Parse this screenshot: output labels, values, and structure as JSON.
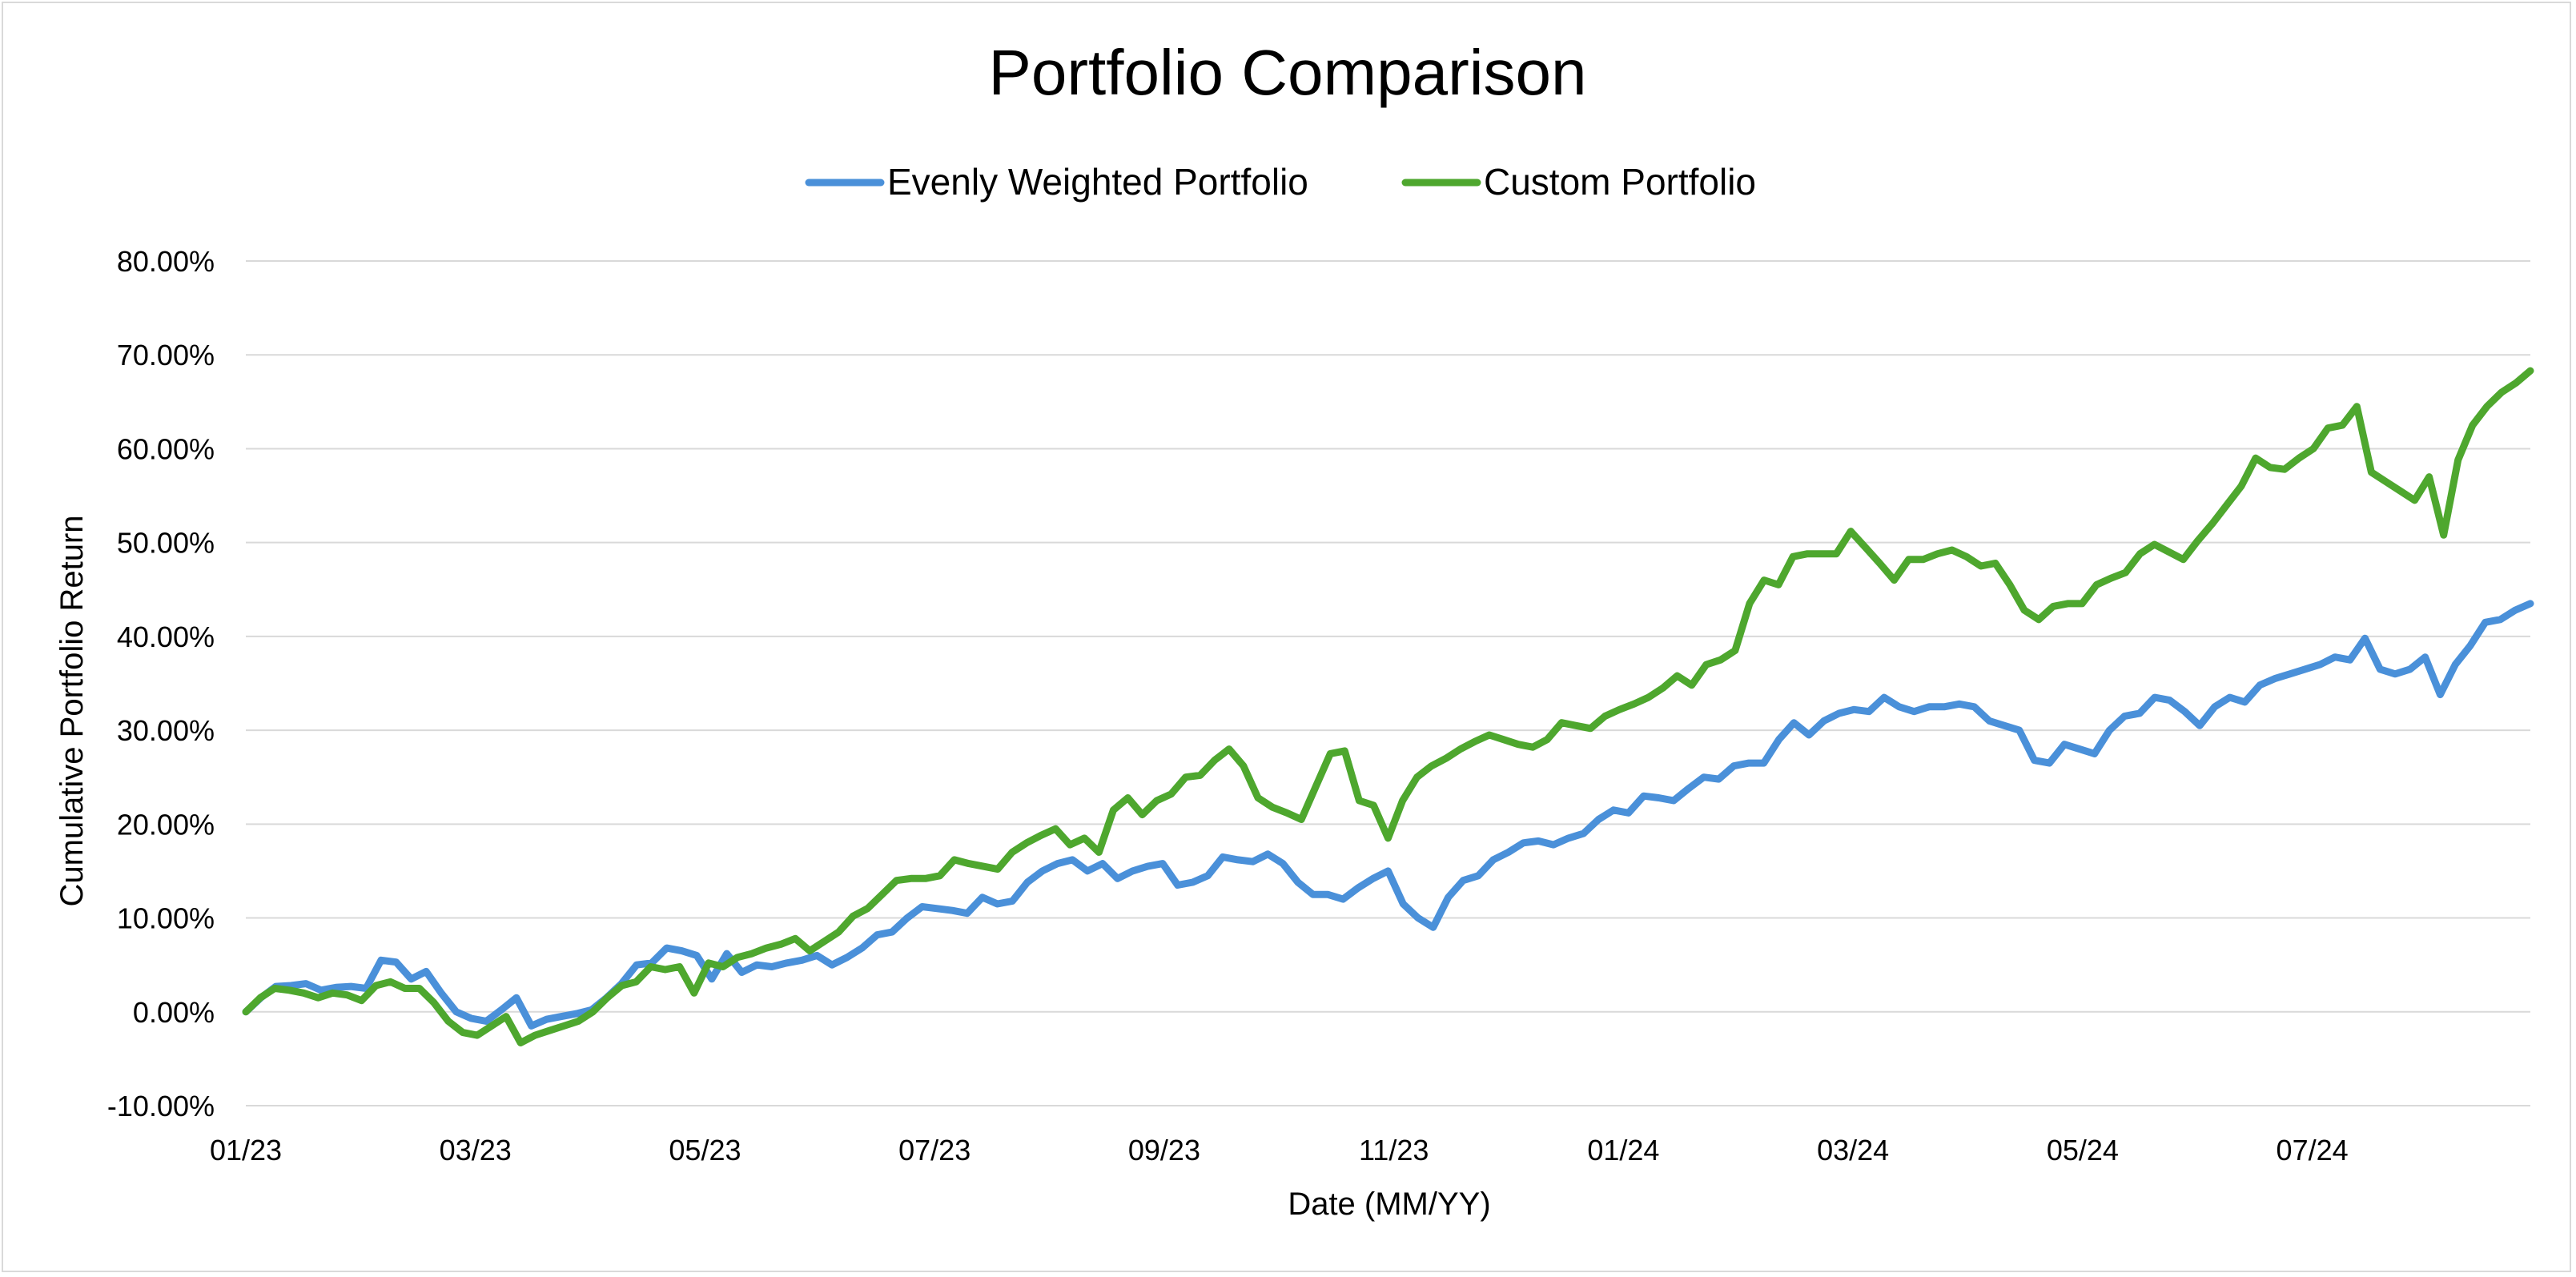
{
  "chart_data": {
    "type": "line",
    "title": "Portfolio Comparison",
    "xlabel": "Date (MM/YY)",
    "ylabel": "Cumulative Portfolio Return",
    "ylim": [
      -0.1,
      0.8
    ],
    "y_ticks": [
      -0.1,
      0.0,
      0.1,
      0.2,
      0.3,
      0.4,
      0.5,
      0.6,
      0.7,
      0.8
    ],
    "y_tick_labels": [
      "-10.00%",
      "0.00%",
      "10.00%",
      "20.00%",
      "30.00%",
      "40.00%",
      "50.00%",
      "60.00%",
      "70.00%",
      "80.00%"
    ],
    "x_tick_labels": [
      "01/23",
      "03/23",
      "05/23",
      "07/23",
      "09/23",
      "11/23",
      "01/24",
      "03/24",
      "05/24",
      "07/24"
    ],
    "x_tick_positions": [
      0,
      20,
      40,
      60,
      80,
      100,
      120,
      140,
      160,
      180
    ],
    "x_max": 199,
    "legend_position": "top",
    "grid": true,
    "series": [
      {
        "name": "Evenly Weighted Portfolio",
        "color": "#4a90d9",
        "values": [
          0.0,
          0.015,
          0.027,
          0.028,
          0.03,
          0.023,
          0.026,
          0.027,
          0.025,
          0.055,
          0.053,
          0.035,
          0.043,
          0.02,
          0.0,
          -0.007,
          -0.01,
          0.002,
          0.015,
          -0.015,
          -0.008,
          -0.005,
          -0.002,
          0.002,
          0.015,
          0.03,
          0.05,
          0.052,
          0.068,
          0.065,
          0.06,
          0.035,
          0.062,
          0.042,
          0.05,
          0.048,
          0.052,
          0.055,
          0.06,
          0.05,
          0.058,
          0.068,
          0.082,
          0.085,
          0.1,
          0.112,
          0.11,
          0.108,
          0.105,
          0.122,
          0.115,
          0.118,
          0.138,
          0.15,
          0.158,
          0.162,
          0.15,
          0.158,
          0.142,
          0.15,
          0.155,
          0.158,
          0.135,
          0.138,
          0.145,
          0.165,
          0.162,
          0.16,
          0.168,
          0.158,
          0.138,
          0.125,
          0.125,
          0.12,
          0.132,
          0.142,
          0.15,
          0.115,
          0.1,
          0.09,
          0.122,
          0.14,
          0.145,
          0.162,
          0.17,
          0.18,
          0.182,
          0.178,
          0.185,
          0.19,
          0.205,
          0.215,
          0.212,
          0.23,
          0.228,
          0.225,
          0.238,
          0.25,
          0.248,
          0.262,
          0.265,
          0.265,
          0.29,
          0.308,
          0.295,
          0.31,
          0.318,
          0.322,
          0.32,
          0.335,
          0.325,
          0.32,
          0.325,
          0.325,
          0.328,
          0.325,
          0.31,
          0.305,
          0.3,
          0.268,
          0.265,
          0.285,
          0.28,
          0.275,
          0.3,
          0.315,
          0.318,
          0.335,
          0.332,
          0.32,
          0.305,
          0.325,
          0.335,
          0.33,
          0.348,
          0.355,
          0.36,
          0.365,
          0.37,
          0.378,
          0.375,
          0.398,
          0.365,
          0.36,
          0.365,
          0.378,
          0.338,
          0.37,
          0.39,
          0.415,
          0.418,
          0.428,
          0.435
        ]
      },
      {
        "name": "Custom Portfolio",
        "color": "#4ea72e",
        "values": [
          0.0,
          0.015,
          0.025,
          0.023,
          0.02,
          0.015,
          0.02,
          0.018,
          0.012,
          0.028,
          0.032,
          0.025,
          0.025,
          0.01,
          -0.01,
          -0.022,
          -0.025,
          -0.015,
          -0.005,
          -0.033,
          -0.025,
          -0.02,
          -0.015,
          -0.01,
          0.0,
          0.015,
          0.028,
          0.032,
          0.048,
          0.045,
          0.048,
          0.02,
          0.052,
          0.048,
          0.058,
          0.062,
          0.068,
          0.072,
          0.078,
          0.065,
          0.075,
          0.085,
          0.102,
          0.11,
          0.125,
          0.14,
          0.142,
          0.142,
          0.145,
          0.162,
          0.158,
          0.155,
          0.152,
          0.17,
          0.18,
          0.188,
          0.195,
          0.178,
          0.185,
          0.17,
          0.215,
          0.228,
          0.21,
          0.225,
          0.232,
          0.25,
          0.252,
          0.268,
          0.28,
          0.262,
          0.228,
          0.218,
          0.212,
          0.205,
          0.24,
          0.275,
          0.278,
          0.225,
          0.22,
          0.185,
          0.225,
          0.25,
          0.262,
          0.27,
          0.28,
          0.288,
          0.295,
          0.29,
          0.285,
          0.282,
          0.29,
          0.308,
          0.305,
          0.302,
          0.315,
          0.322,
          0.328,
          0.335,
          0.345,
          0.358,
          0.348,
          0.37,
          0.375,
          0.385,
          0.435,
          0.46,
          0.455,
          0.485,
          0.488,
          0.488,
          0.488,
          0.512,
          0.495,
          0.478,
          0.46,
          0.482,
          0.482,
          0.488,
          0.492,
          0.485,
          0.475,
          0.478,
          0.455,
          0.428,
          0.418,
          0.432,
          0.435,
          0.435,
          0.455,
          0.462,
          0.468,
          0.488,
          0.498,
          0.49,
          0.482,
          0.502,
          0.52,
          0.54,
          0.56,
          0.59,
          0.58,
          0.578,
          0.59,
          0.6,
          0.622,
          0.625,
          0.645,
          0.575,
          0.565,
          0.555,
          0.545,
          0.57,
          0.508,
          0.588,
          0.625,
          0.645,
          0.66,
          0.67,
          0.683
        ]
      }
    ]
  }
}
